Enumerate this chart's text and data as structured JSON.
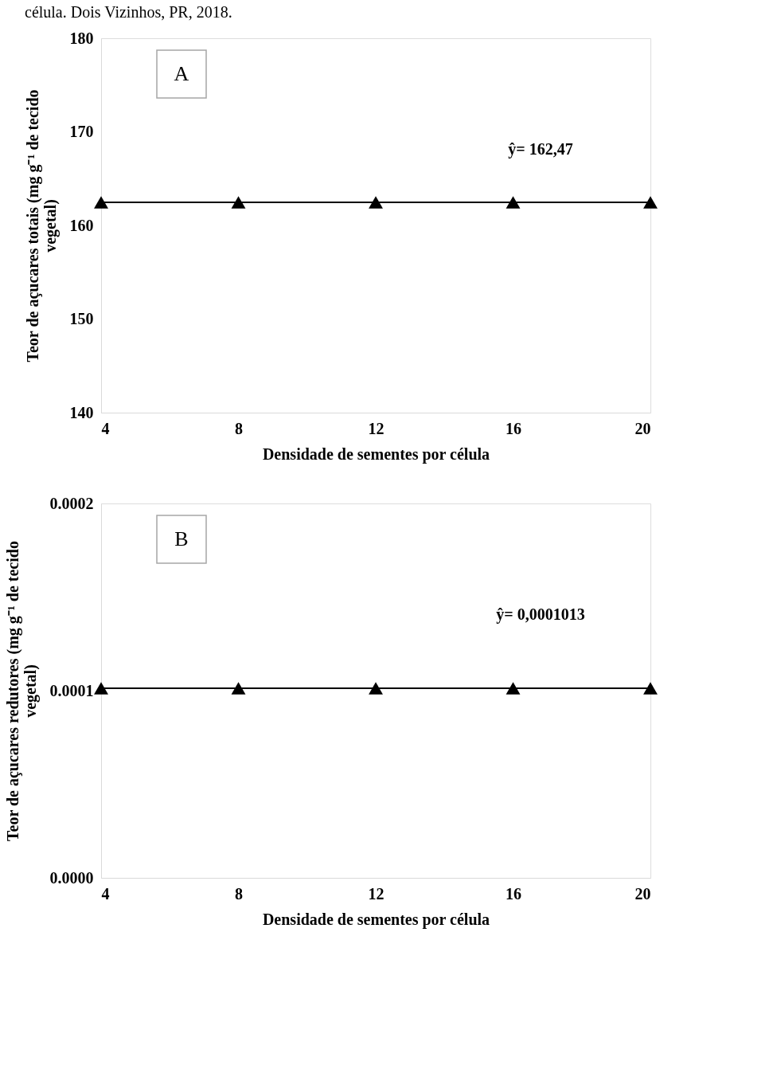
{
  "chart_data": [
    {
      "type": "line",
      "title": "célula. Dois Vizinhos, PR, 2018.",
      "xlabel": "Densidade de sementes por célula",
      "ylabel": "Teor de açucares totais (mg g⁻¹ de tecido vegetal)",
      "x": [
        4,
        8,
        12,
        16,
        20
      ],
      "series": [
        {
          "color": "#000000",
          "values": [
            162.47,
            162.47,
            162.47,
            162.47,
            162.47
          ]
        }
      ],
      "xlim": [
        4,
        20
      ],
      "xticks": [
        4,
        8,
        12,
        16,
        20
      ],
      "ylim": [
        140,
        180
      ],
      "yticks": [
        140,
        150,
        160,
        170,
        180
      ],
      "marker": "triangle",
      "line_style": "solid",
      "grid": false,
      "annotations": [
        "A",
        "ŷ= 162,47"
      ]
    },
    {
      "type": "line",
      "xlabel": "Densidade de sementes por célula",
      "ylabel": "Teor de açucares redutores (mg g⁻¹ de tecido vegetal)",
      "x": [
        4,
        8,
        12,
        16,
        20
      ],
      "series": [
        {
          "color": "#000000",
          "values": [
            0.0001013,
            0.0001013,
            0.0001013,
            0.0001013,
            0.0001013
          ]
        }
      ],
      "xlim": [
        4,
        20
      ],
      "xticks": [
        4,
        8,
        12,
        16,
        20
      ],
      "ylim": [
        0,
        0.0002
      ],
      "yticks": [
        {
          "value": 0,
          "label": "0.0000"
        },
        {
          "value": 0.0001,
          "label": "0.0001"
        },
        {
          "value": 0.0002,
          "label": "0.0002"
        }
      ],
      "marker": "triangle",
      "line_style": "solid",
      "grid": false,
      "annotations": [
        "B",
        "ŷ= 0,0001013"
      ]
    }
  ]
}
